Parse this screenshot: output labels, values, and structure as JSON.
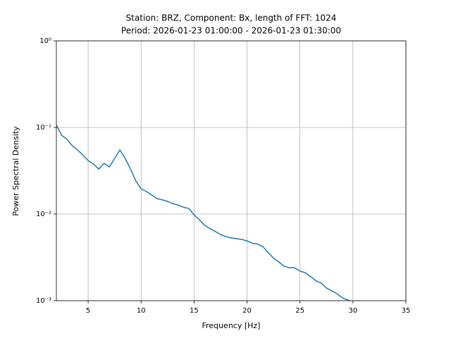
{
  "chart_data": {
    "type": "line",
    "title": "Station: BRZ, Component: Bx, length of FFT: 1024",
    "subtitle": "Period: 2026-01-23 01:00:00 - 2026-01-23 01:30:00",
    "x_label": "Frequency [Hz]",
    "y_label": "Power Spectral Density",
    "x": [
      2,
      2.5,
      3,
      3.5,
      4,
      4.5,
      5,
      5.5,
      6,
      6.5,
      7,
      7.5,
      8,
      8.5,
      9,
      9.5,
      10,
      10.5,
      11,
      11.5,
      12,
      12.5,
      13,
      13.5,
      14,
      14.5,
      15,
      15.5,
      16,
      16.5,
      17,
      17.5,
      18,
      18.5,
      19,
      19.5,
      20,
      20.5,
      21,
      21.5,
      22,
      22.5,
      23,
      23.5,
      24,
      24.5,
      25,
      25.5,
      26,
      26.5,
      27,
      27.5,
      28,
      28.5,
      29,
      29.5,
      29.7
    ],
    "series": [
      {
        "name": "Bx",
        "color": "#1f77b4",
        "values": [
          0.106,
          0.081,
          0.073,
          0.0615,
          0.055,
          0.048,
          0.0415,
          0.0378,
          0.0331,
          0.0385,
          0.035,
          0.0439,
          0.055,
          0.0439,
          0.0331,
          0.0241,
          0.0196,
          0.0182,
          0.0166,
          0.0151,
          0.0146,
          0.014,
          0.0132,
          0.0127,
          0.012,
          0.0116,
          0.0098,
          0.0086,
          0.0074,
          0.0068,
          0.0063,
          0.0058,
          0.0055,
          0.0053,
          0.0052,
          0.0051,
          0.0049,
          0.0046,
          0.0045,
          0.0042,
          0.0036,
          0.0031,
          0.0028,
          0.0025,
          0.0024,
          0.0024,
          0.0022,
          0.0021,
          0.0019,
          0.0017,
          0.0016,
          0.0014,
          0.0013,
          0.0012,
          0.00108,
          0.00102,
          0.001
        ]
      }
    ],
    "xlim": [
      2,
      35
    ],
    "xticks": [
      5,
      10,
      15,
      20,
      25,
      30,
      35
    ],
    "ylim": [
      0.001,
      1
    ],
    "y_log": true,
    "yticks": [
      {
        "value": 0.001,
        "label": "10⁻³"
      },
      {
        "value": 0.01,
        "label": "10⁻²"
      },
      {
        "value": 0.1,
        "label": "10⁻¹"
      },
      {
        "value": 1,
        "label": "10⁰"
      }
    ],
    "grid": true
  }
}
